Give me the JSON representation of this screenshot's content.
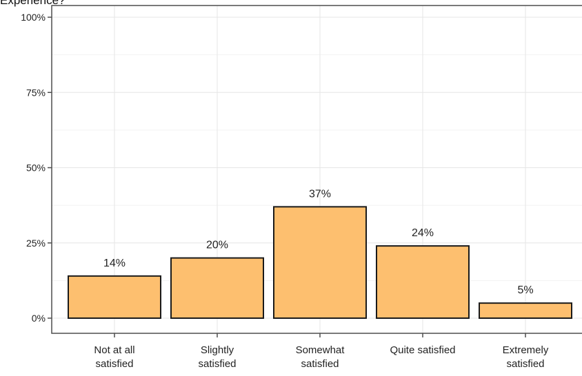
{
  "chart_data": {
    "type": "bar",
    "title": "Experience?",
    "categories": [
      [
        "Not at all",
        "satisfied"
      ],
      [
        "Slightly",
        "satisfied"
      ],
      [
        "Somewhat",
        "satisfied"
      ],
      [
        "Quite satisfied"
      ],
      [
        "Extremely",
        "satisfied"
      ]
    ],
    "values": [
      14,
      20,
      37,
      24,
      5
    ],
    "value_labels": [
      "14%",
      "20%",
      "37%",
      "24%",
      "5%"
    ],
    "ylim": [
      0,
      100
    ],
    "yticks": [
      0,
      25,
      50,
      75,
      100
    ],
    "ytick_labels": [
      "0%",
      "25%",
      "50%",
      "75%",
      "100%"
    ],
    "xlabel": "",
    "ylabel": "",
    "grid": true,
    "colors": {
      "bar_fill": "#fdbf6f",
      "bar_stroke": "#1a1a1a",
      "grid_major": "#e6e6e6",
      "grid_minor": "#f2f2f2",
      "panel_border": "#4d4d4d",
      "text": "#222222"
    }
  }
}
